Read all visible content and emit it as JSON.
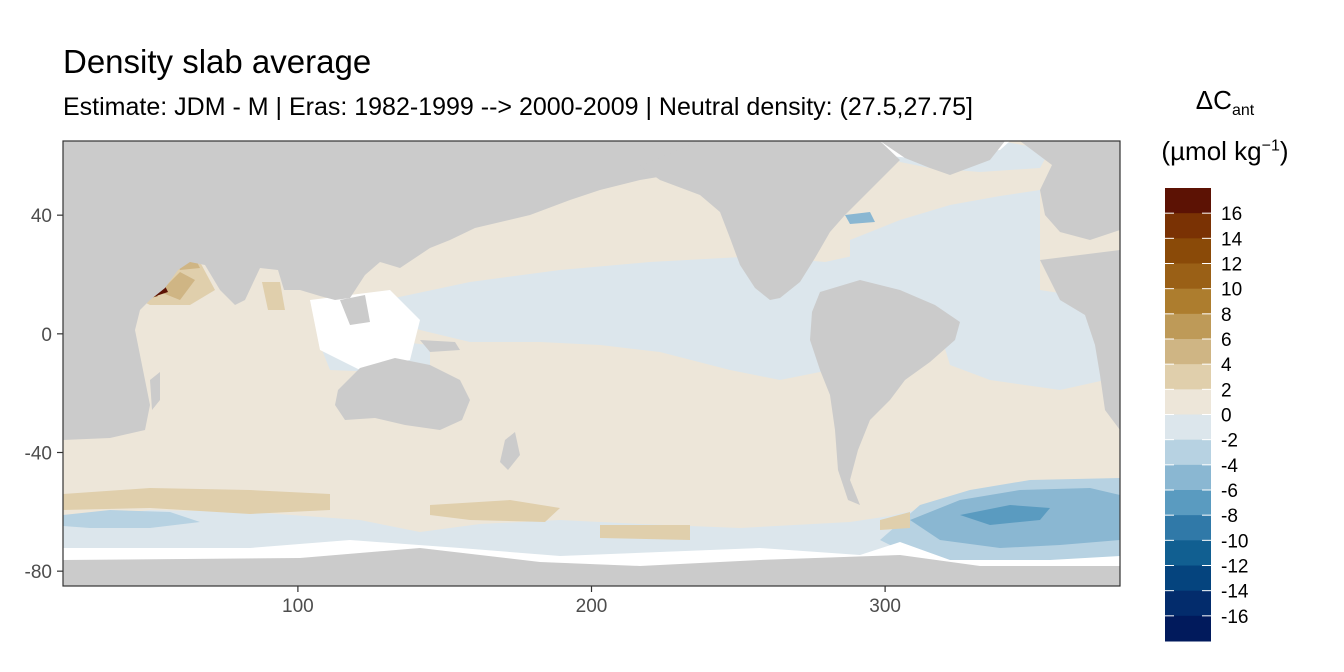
{
  "chart_data": {
    "type": "heatmap",
    "title": "Density slab average",
    "subtitle": "Estimate: JDM - M | Eras: 1982-1999 --> 2000-2009 | Neutral density: (27.5,27.75]",
    "legend": {
      "title_line1": "ΔC",
      "title_sub": "ant",
      "title_line2": "(µmol kg",
      "title_sup": "−1",
      "title_close": ")",
      "placement": "right",
      "bins": [
        {
          "from": 16,
          "to": 18,
          "color": "#5c1204"
        },
        {
          "from": 14,
          "to": 16,
          "color": "#7a3204"
        },
        {
          "from": 12,
          "to": 14,
          "color": "#8a4a08"
        },
        {
          "from": 10,
          "to": 12,
          "color": "#9a6016"
        },
        {
          "from": 8,
          "to": 10,
          "color": "#ad7d2e"
        },
        {
          "from": 6,
          "to": 8,
          "color": "#be9a58"
        },
        {
          "from": 4,
          "to": 6,
          "color": "#cfb584"
        },
        {
          "from": 2,
          "to": 4,
          "color": "#e0cfac"
        },
        {
          "from": 0,
          "to": 2,
          "color": "#ede6d9"
        },
        {
          "from": -2,
          "to": 0,
          "color": "#dce6ec"
        },
        {
          "from": -4,
          "to": -2,
          "color": "#b7d2e2"
        },
        {
          "from": -6,
          "to": -4,
          "color": "#8ab7d2"
        },
        {
          "from": -8,
          "to": -6,
          "color": "#5a9bc0"
        },
        {
          "from": -10,
          "to": -8,
          "color": "#3079a8"
        },
        {
          "from": -12,
          "to": -10,
          "color": "#115f91"
        },
        {
          "from": -14,
          "to": -12,
          "color": "#05447e"
        },
        {
          "from": -16,
          "to": -14,
          "color": "#032c6c"
        },
        {
          "from": -18,
          "to": -16,
          "color": "#011a5c"
        }
      ],
      "tick_labels": [
        "16",
        "14",
        "12",
        "10",
        "8",
        "6",
        "4",
        "2",
        "0",
        "-2",
        "-4",
        "-6",
        "-8",
        "-10",
        "-12",
        "-14",
        "-16"
      ]
    },
    "x_ticks": [
      100,
      200,
      300
    ],
    "x_tick_labels": [
      "100",
      "200",
      "300"
    ],
    "y_ticks": [
      40,
      0,
      -40,
      -80
    ],
    "y_tick_labels": [
      "40",
      "0",
      "-40",
      "-80"
    ],
    "xlim": [
      20,
      380
    ],
    "ylim": [
      -85,
      65
    ],
    "grid": false,
    "colors": {
      "land": "#cbcbcb",
      "no_data": "#ffffff",
      "ocean_pos0_2": "#ede6d9",
      "ocean_neg0_2": "#dce6ec"
    }
  }
}
